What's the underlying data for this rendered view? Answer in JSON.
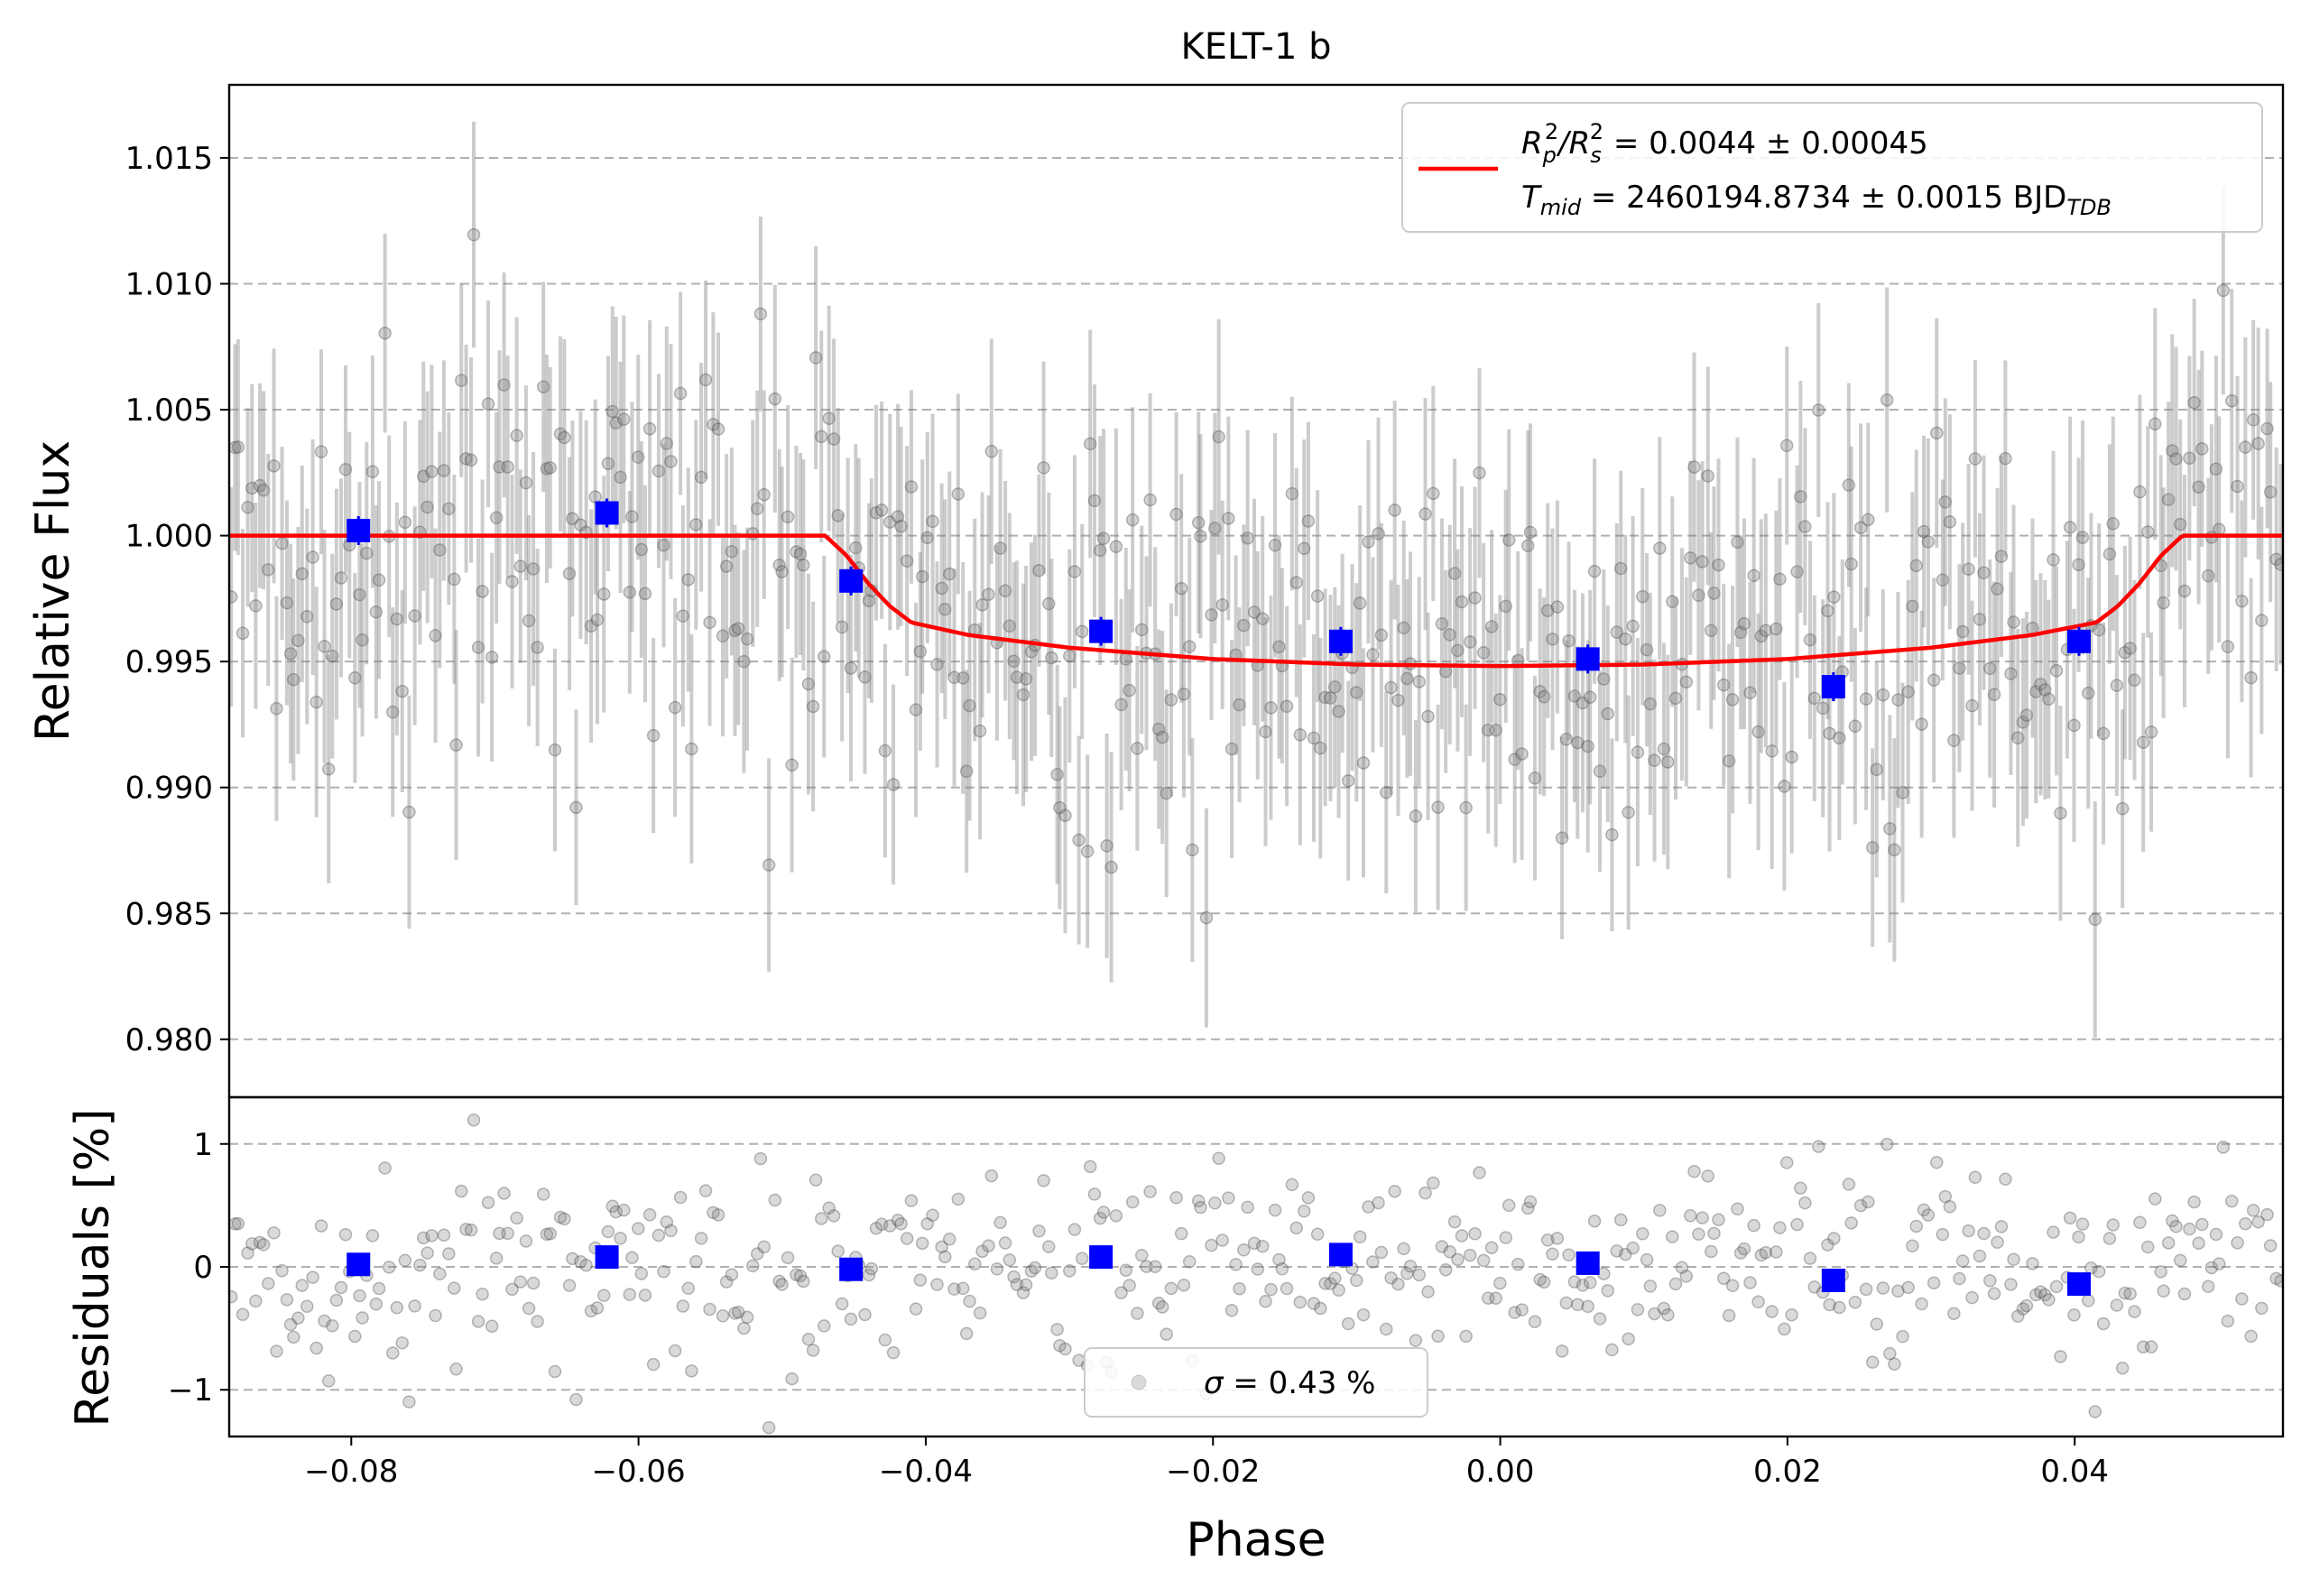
{
  "chart_data": [
    {
      "panel": "light-curve",
      "type": "scatter",
      "title": "KELT-1 b",
      "xlabel": "",
      "ylabel": "Relative Flux",
      "xlim": [
        -0.0885,
        0.0545
      ],
      "ylim": [
        0.9777,
        1.0179
      ],
      "yticks": [
        0.98,
        0.985,
        0.99,
        0.995,
        1.0,
        1.005,
        1.01,
        1.015
      ],
      "ytick_labels": [
        "0.980",
        "0.985",
        "0.990",
        "0.995",
        "1.000",
        "1.005",
        "1.010",
        "1.015"
      ],
      "grid": "horizontal dashed",
      "legend": {
        "placement": "top-right",
        "line1": {
          "prefix": "R",
          "sub1": "p",
          "sup1": "2",
          "slash": "/R",
          "sub2": "s",
          "sup2": "2",
          "rest": " = 0.0044 ± 0.00045"
        },
        "line2": {
          "prefix": "T",
          "sub1": "mid",
          "rest": " = 2460194.8734 ± 0.0015 BJD",
          "sub2": "TDB"
        }
      },
      "model": {
        "name": "transit model",
        "color": "#ff0000",
        "x": [
          -0.0885,
          -0.047,
          -0.0455,
          -0.044,
          -0.0425,
          -0.041,
          -0.037,
          -0.03,
          -0.02,
          -0.01,
          0.0,
          0.01,
          0.02,
          0.03,
          0.037,
          0.0415,
          0.043,
          0.0445,
          0.046,
          0.0475,
          0.0545
        ],
        "y": [
          1.0,
          1.0,
          0.9992,
          0.9981,
          0.9972,
          0.99655,
          0.99605,
          0.99555,
          0.9951,
          0.99488,
          0.99482,
          0.99488,
          0.9951,
          0.99555,
          0.99605,
          0.99655,
          0.9972,
          0.9981,
          0.9992,
          1.0,
          1.0
        ]
      },
      "binned": {
        "color": "#0000ff",
        "x": [
          -0.0795,
          -0.0622,
          -0.0452,
          -0.0278,
          -0.0111,
          0.0061,
          0.0232,
          0.0403
        ],
        "y": [
          1.0002,
          1.0009,
          0.9982,
          0.9962,
          0.9958,
          0.9951,
          0.994,
          0.9958
        ]
      },
      "raw_points": {
        "color": "#808080",
        "note": "about 480 unbinned measurements with error bars of roughly ±0.0042, scattering about the model between 0.983 and 1.012"
      }
    },
    {
      "panel": "residuals",
      "type": "scatter",
      "xlabel": "Phase",
      "ylabel": "Residuals [%]",
      "xlim": [
        -0.0885,
        0.0545
      ],
      "ylim": [
        -1.38,
        1.38
      ],
      "xticks": [
        -0.08,
        -0.06,
        -0.04,
        -0.02,
        0.0,
        0.02,
        0.04
      ],
      "xtick_labels": [
        "−0.08",
        "−0.06",
        "−0.04",
        "−0.02",
        "0.00",
        "0.02",
        "0.04"
      ],
      "yticks": [
        -1,
        0,
        1
      ],
      "ytick_labels": [
        "−1",
        "0",
        "1"
      ],
      "grid": "horizontal dashed",
      "legend": {
        "placement": "bottom-center",
        "sigma_symbol": "σ",
        "text": " = 0.43 %"
      },
      "binned": {
        "color": "#0000ff",
        "x": [
          -0.0795,
          -0.0622,
          -0.0452,
          -0.0278,
          -0.0111,
          0.0061,
          0.0232,
          0.0403
        ],
        "y": [
          0.02,
          0.08,
          -0.02,
          0.08,
          0.1,
          0.03,
          -0.11,
          -0.14
        ]
      }
    }
  ]
}
